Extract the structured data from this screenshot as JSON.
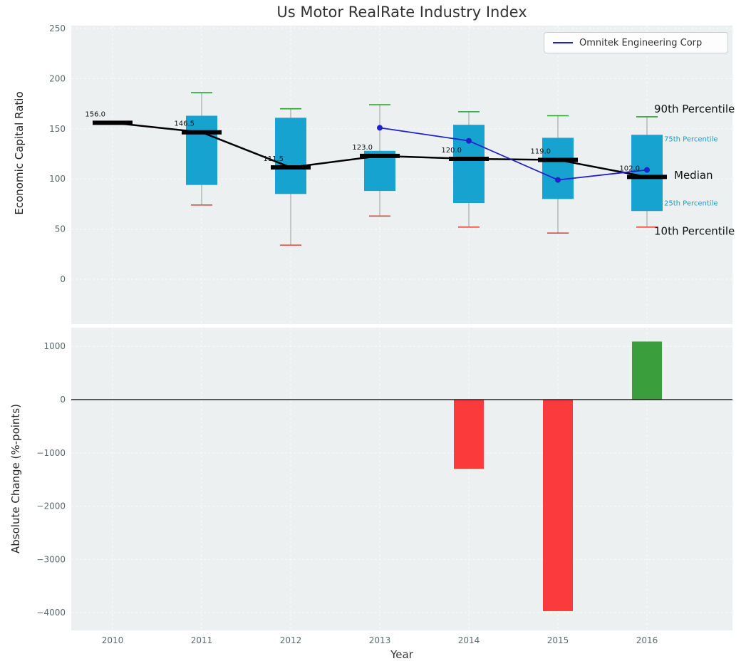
{
  "chart_data": {
    "type": "boxplot+line+bar",
    "title": "Us Motor RealRate Industry Index",
    "xlabel": "Year",
    "x_years": [
      2010,
      2011,
      2012,
      2013,
      2014,
      2015,
      2016
    ],
    "xlim": [
      2009.54,
      2016.96
    ],
    "panel_bg": "#edf0f1",
    "grid_color": "#fafbfb",
    "tick_color": "#5c6b6b",
    "legend": {
      "label": "Omnitek Engineering Corp",
      "position": "upper right"
    },
    "top_panel": {
      "type": "boxplot+line",
      "ylabel": "Economic Capital Ratio",
      "ylim": [
        -45,
        250
      ],
      "yticks": [
        0,
        50,
        100,
        150,
        200,
        250
      ],
      "grid": true,
      "boxes": [
        {
          "year": 2010,
          "median": 156.0,
          "median_label": "156.0",
          "p10": null,
          "p25": null,
          "p75": null,
          "p90": null
        },
        {
          "year": 2011,
          "median": 146.5,
          "median_label": "146.5",
          "p10": 74,
          "p25": 94,
          "p75": 163,
          "p90": 186
        },
        {
          "year": 2012,
          "median": 111.5,
          "median_label": "111.5",
          "p10": 34,
          "p25": 85,
          "p75": 161,
          "p90": 170
        },
        {
          "year": 2013,
          "median": 123.0,
          "median_label": "123.0",
          "p10": 63,
          "p25": 88,
          "p75": 128,
          "p90": 174
        },
        {
          "year": 2014,
          "median": 120.0,
          "median_label": "120.0",
          "p10": 52,
          "p25": 76,
          "p75": 154,
          "p90": 167
        },
        {
          "year": 2015,
          "median": 119.0,
          "median_label": "119.0",
          "p10": 46,
          "p25": 80,
          "p75": 141,
          "p90": 163
        },
        {
          "year": 2016,
          "median": 102.0,
          "median_label": "102.0",
          "p10": 52,
          "p25": 68,
          "p75": 144,
          "p90": 162
        }
      ],
      "series": {
        "name": "Omnitek Engineering Corp",
        "color": "#2020cc",
        "points": [
          {
            "year": 2013,
            "value": 151
          },
          {
            "year": 2014,
            "value": 138
          },
          {
            "year": 2015,
            "value": 99
          },
          {
            "year": 2016,
            "value": 109
          }
        ]
      },
      "annotations": [
        {
          "label": "90th Percentile",
          "value": 170,
          "size": 15,
          "color": "#111111",
          "dx": 10
        },
        {
          "label": "75th Percentile",
          "value": 140,
          "size": 10,
          "color": "#0ca0d6",
          "dx": 24
        },
        {
          "label": "Median",
          "value": 104,
          "size": 15,
          "color": "#111111",
          "dx": 38
        },
        {
          "label": "25th Percentile",
          "value": 76,
          "size": 10,
          "color": "#0ca0d6",
          "dx": 24
        },
        {
          "label": "10th Percentile",
          "value": 48,
          "size": 15,
          "color": "#111111",
          "dx": 10
        }
      ],
      "colors": {
        "box": "#17a3cf",
        "median": "#000000",
        "p90_cap": "#2ca02c",
        "p10_cap": "#e8433a",
        "whisker": "#9b9b9b"
      }
    },
    "bottom_panel": {
      "type": "bar",
      "ylabel": "Absolute Change (%-points)",
      "ylim": [
        -4330,
        1350
      ],
      "yticks": [
        1000,
        0,
        -1000,
        -2000,
        -3000,
        -4000
      ],
      "grid": true,
      "bars": [
        {
          "year": 2014,
          "value": -1300
        },
        {
          "year": 2015,
          "value": -3970
        },
        {
          "year": 2016,
          "value": 1090
        }
      ],
      "colors": {
        "positive": "#3a9e3c",
        "negative": "#fb3b3b",
        "zero_line": "#000000"
      }
    }
  }
}
